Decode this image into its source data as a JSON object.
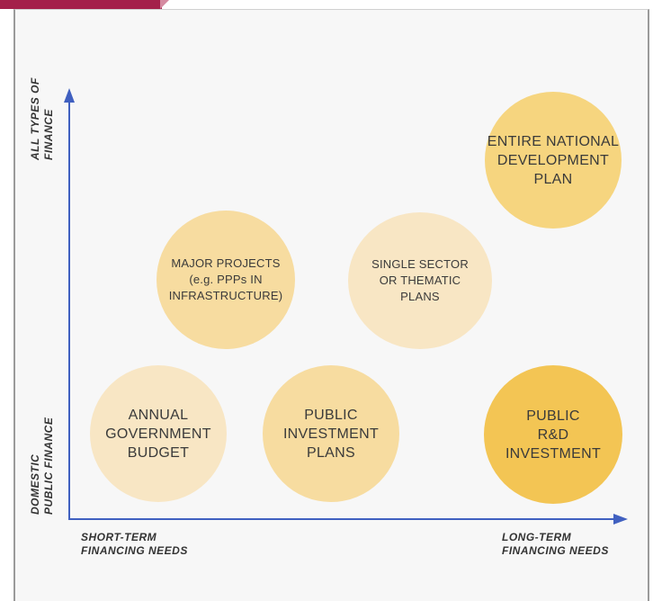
{
  "colors": {
    "banner": "#a4204a",
    "axis": "#4060c0",
    "bubble_light": "#f8e6c4",
    "bubble_mid": "#f7dca0",
    "bubble_strong": "#f5ce6c",
    "bubble_stronger": "#f3c554"
  },
  "y_axis": {
    "top_label": [
      "ALL TYPES OF",
      "FINANCE"
    ],
    "bottom_label": [
      "DOMESTIC",
      "PUBLIC FINANCE"
    ]
  },
  "x_axis": {
    "left_label": [
      "SHORT-TERM",
      "FINANCING NEEDS"
    ],
    "right_label": [
      "LONG-TERM",
      "FINANCING NEEDS"
    ]
  },
  "bubbles": {
    "annual_budget": {
      "lines": [
        "ANNUAL",
        "GOVERNMENT",
        "BUDGET"
      ]
    },
    "public_investment_plans": {
      "lines": [
        "PUBLIC",
        "INVESTMENT",
        "PLANS"
      ]
    },
    "public_rd": {
      "lines": [
        "PUBLIC",
        "R&D",
        "INVESTMENT"
      ]
    },
    "major_projects": {
      "lines": [
        "MAJOR PROJECTS",
        "(e.g. PPPs IN",
        "INFRASTRUCTURE)"
      ]
    },
    "single_sector": {
      "lines": [
        "SINGLE SECTOR",
        "OR THEMATIC",
        "PLANS"
      ]
    },
    "national_plan": {
      "lines": [
        "ENTIRE NATIONAL",
        "DEVELOPMENT",
        "PLAN"
      ]
    }
  }
}
